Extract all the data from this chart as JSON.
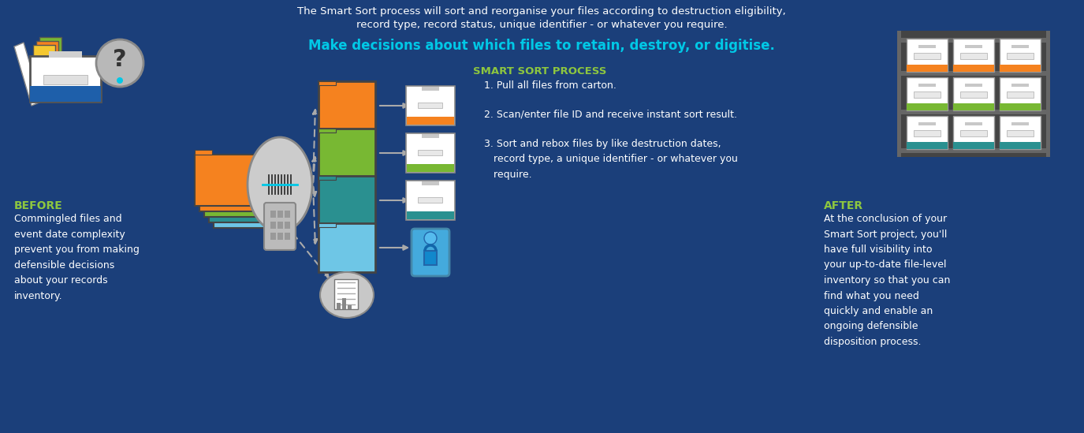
{
  "bg_color": "#1b3f7a",
  "title_line1": "The Smart Sort process will sort and reorganise your files according to destruction eligibility,",
  "title_line2": "record type, record status, unique identifier - or whatever you require.",
  "subtitle": "Make decisions about which files to retain, destroy, or digitise.",
  "before_title": "BEFORE",
  "before_text": "Commingled files and\nevent date complexity\nprevent you from making\ndefensible decisions\nabout your records\ninventory.",
  "process_title": "SMART SORT PROCESS",
  "process_step1": "1. Pull all files from carton.",
  "process_step2": "2. Scan/enter file ID and receive instant sort result.",
  "process_step3": "3. Sort and rebox files by like destruction dates,\n   record type, a unique identifier - or whatever you\n   require.",
  "after_title": "AFTER",
  "after_text": "At the conclusion of your\nSmart Sort project, you'll\nhave full visibility into\nyour up-to-date file-level\ninventory so that you can\nfind what you need\nquickly and enable an\nongoing defensible\ndisposition process.",
  "orange": "#f5821f",
  "green": "#78b833",
  "teal": "#2a9090",
  "light_blue": "#6ec6e6",
  "cyan": "#00c8e6",
  "lime": "#8dc63f",
  "white": "#ffffff",
  "gray_shelf": "#555555",
  "light_gray": "#d0d0d0",
  "mid_gray": "#aaaaaa",
  "dark_bg_box": "#1b3f7a"
}
